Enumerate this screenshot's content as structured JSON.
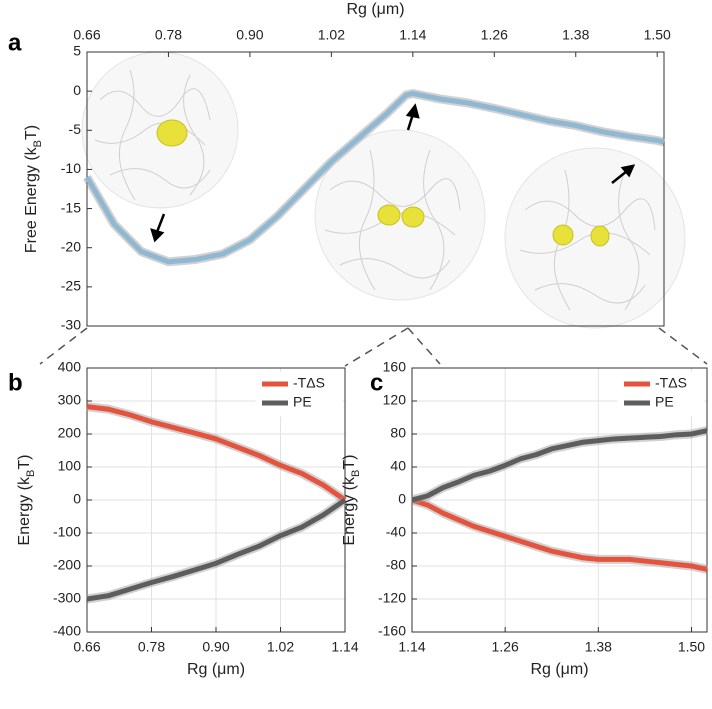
{
  "chart_data": [
    {
      "type": "line",
      "panel": "a",
      "xlabel": "Rg (μm)",
      "ylabel": [
        "Free Energy (k",
        "B",
        "T)"
      ],
      "xaxis": "top",
      "grid": false,
      "x": [
        0.66,
        0.7,
        0.74,
        0.78,
        0.82,
        0.86,
        0.9,
        0.94,
        0.98,
        1.02,
        1.06,
        1.1,
        1.13,
        1.14,
        1.18,
        1.22,
        1.26,
        1.3,
        1.34,
        1.38,
        1.42,
        1.46,
        1.5,
        1.51
      ],
      "series": [
        {
          "color": "#8fb8d3",
          "values": [
            -11,
            -17,
            -20.5,
            -21.8,
            -21.5,
            -20.8,
            -19,
            -16,
            -12.5,
            -9,
            -6,
            -3,
            -0.5,
            -0.3,
            -1,
            -1.5,
            -2.2,
            -3,
            -3.8,
            -4.4,
            -5.2,
            -5.8,
            -6.3,
            -6.5
          ]
        }
      ],
      "xlim": [
        0.66,
        1.51
      ],
      "xticks": [
        0.66,
        0.78,
        {
          "value": 0.9,
          "label": "0.90"
        },
        1.02,
        1.14,
        1.26,
        1.38,
        {
          "value": 1.5,
          "label": "1.50"
        }
      ],
      "ylim": [
        -30,
        5
      ],
      "yticks": [
        5,
        0,
        -5,
        -10,
        -15,
        -20,
        -25,
        -30
      ]
    },
    {
      "type": "line",
      "panel": "b",
      "xlabel": "Rg (μm)",
      "ylabel": [
        "Energy (k",
        "B",
        "T)"
      ],
      "xaxis": "bottom",
      "grid": true,
      "legend": "northeast",
      "x": [
        0.66,
        0.7,
        0.74,
        0.78,
        0.82,
        0.86,
        0.9,
        0.94,
        0.98,
        1.02,
        1.06,
        1.1,
        1.14
      ],
      "series": [
        {
          "name": "-TΔS",
          "color": "#e5533c",
          "values": [
            283,
            275,
            258,
            237,
            220,
            203,
            185,
            160,
            135,
            105,
            80,
            45,
            0
          ]
        },
        {
          "name": "PE",
          "color": "#5d5d5d",
          "values": [
            -300,
            -290,
            -270,
            -250,
            -232,
            -212,
            -192,
            -165,
            -140,
            -108,
            -82,
            -45,
            0
          ]
        }
      ],
      "xlim": [
        0.66,
        1.14
      ],
      "xticks": [
        0.66,
        0.78,
        {
          "value": 0.9,
          "label": "0.90"
        },
        1.02,
        1.14
      ],
      "ylim": [
        -400,
        400
      ],
      "yticks": [
        400,
        300,
        200,
        100,
        0,
        -100,
        -200,
        -300,
        -400
      ]
    },
    {
      "type": "line",
      "panel": "c",
      "xlabel": "Rg (μm)",
      "ylabel": [
        "Energy (k",
        "B",
        "T)"
      ],
      "xaxis": "bottom",
      "grid": true,
      "legend": "northeast",
      "x": [
        1.14,
        1.16,
        1.18,
        1.2,
        1.22,
        1.24,
        1.26,
        1.28,
        1.3,
        1.32,
        1.34,
        1.36,
        1.38,
        1.4,
        1.42,
        1.44,
        1.46,
        1.48,
        1.5,
        1.52
      ],
      "series": [
        {
          "name": "-TΔS",
          "color": "#e5533c",
          "values": [
            0,
            -6,
            -16,
            -24,
            -32,
            -38,
            -44,
            -50,
            -56,
            -62,
            -66,
            -70,
            -72,
            -72,
            -72,
            -74,
            -76,
            -78,
            -80,
            -84
          ]
        },
        {
          "name": "PE",
          "color": "#5d5d5d",
          "values": [
            0,
            5,
            15,
            22,
            30,
            35,
            42,
            50,
            55,
            62,
            66,
            70,
            72,
            74,
            75,
            76,
            77,
            79,
            80,
            84
          ]
        }
      ],
      "xlim": [
        1.14,
        1.52
      ],
      "xticks": [
        1.14,
        1.26,
        1.38,
        {
          "value": 1.5,
          "label": "1.50"
        }
      ],
      "ylim": [
        -160,
        160
      ],
      "yticks": [
        160,
        120,
        80,
        40,
        0,
        -40,
        -80,
        -120,
        -160
      ]
    }
  ]
}
